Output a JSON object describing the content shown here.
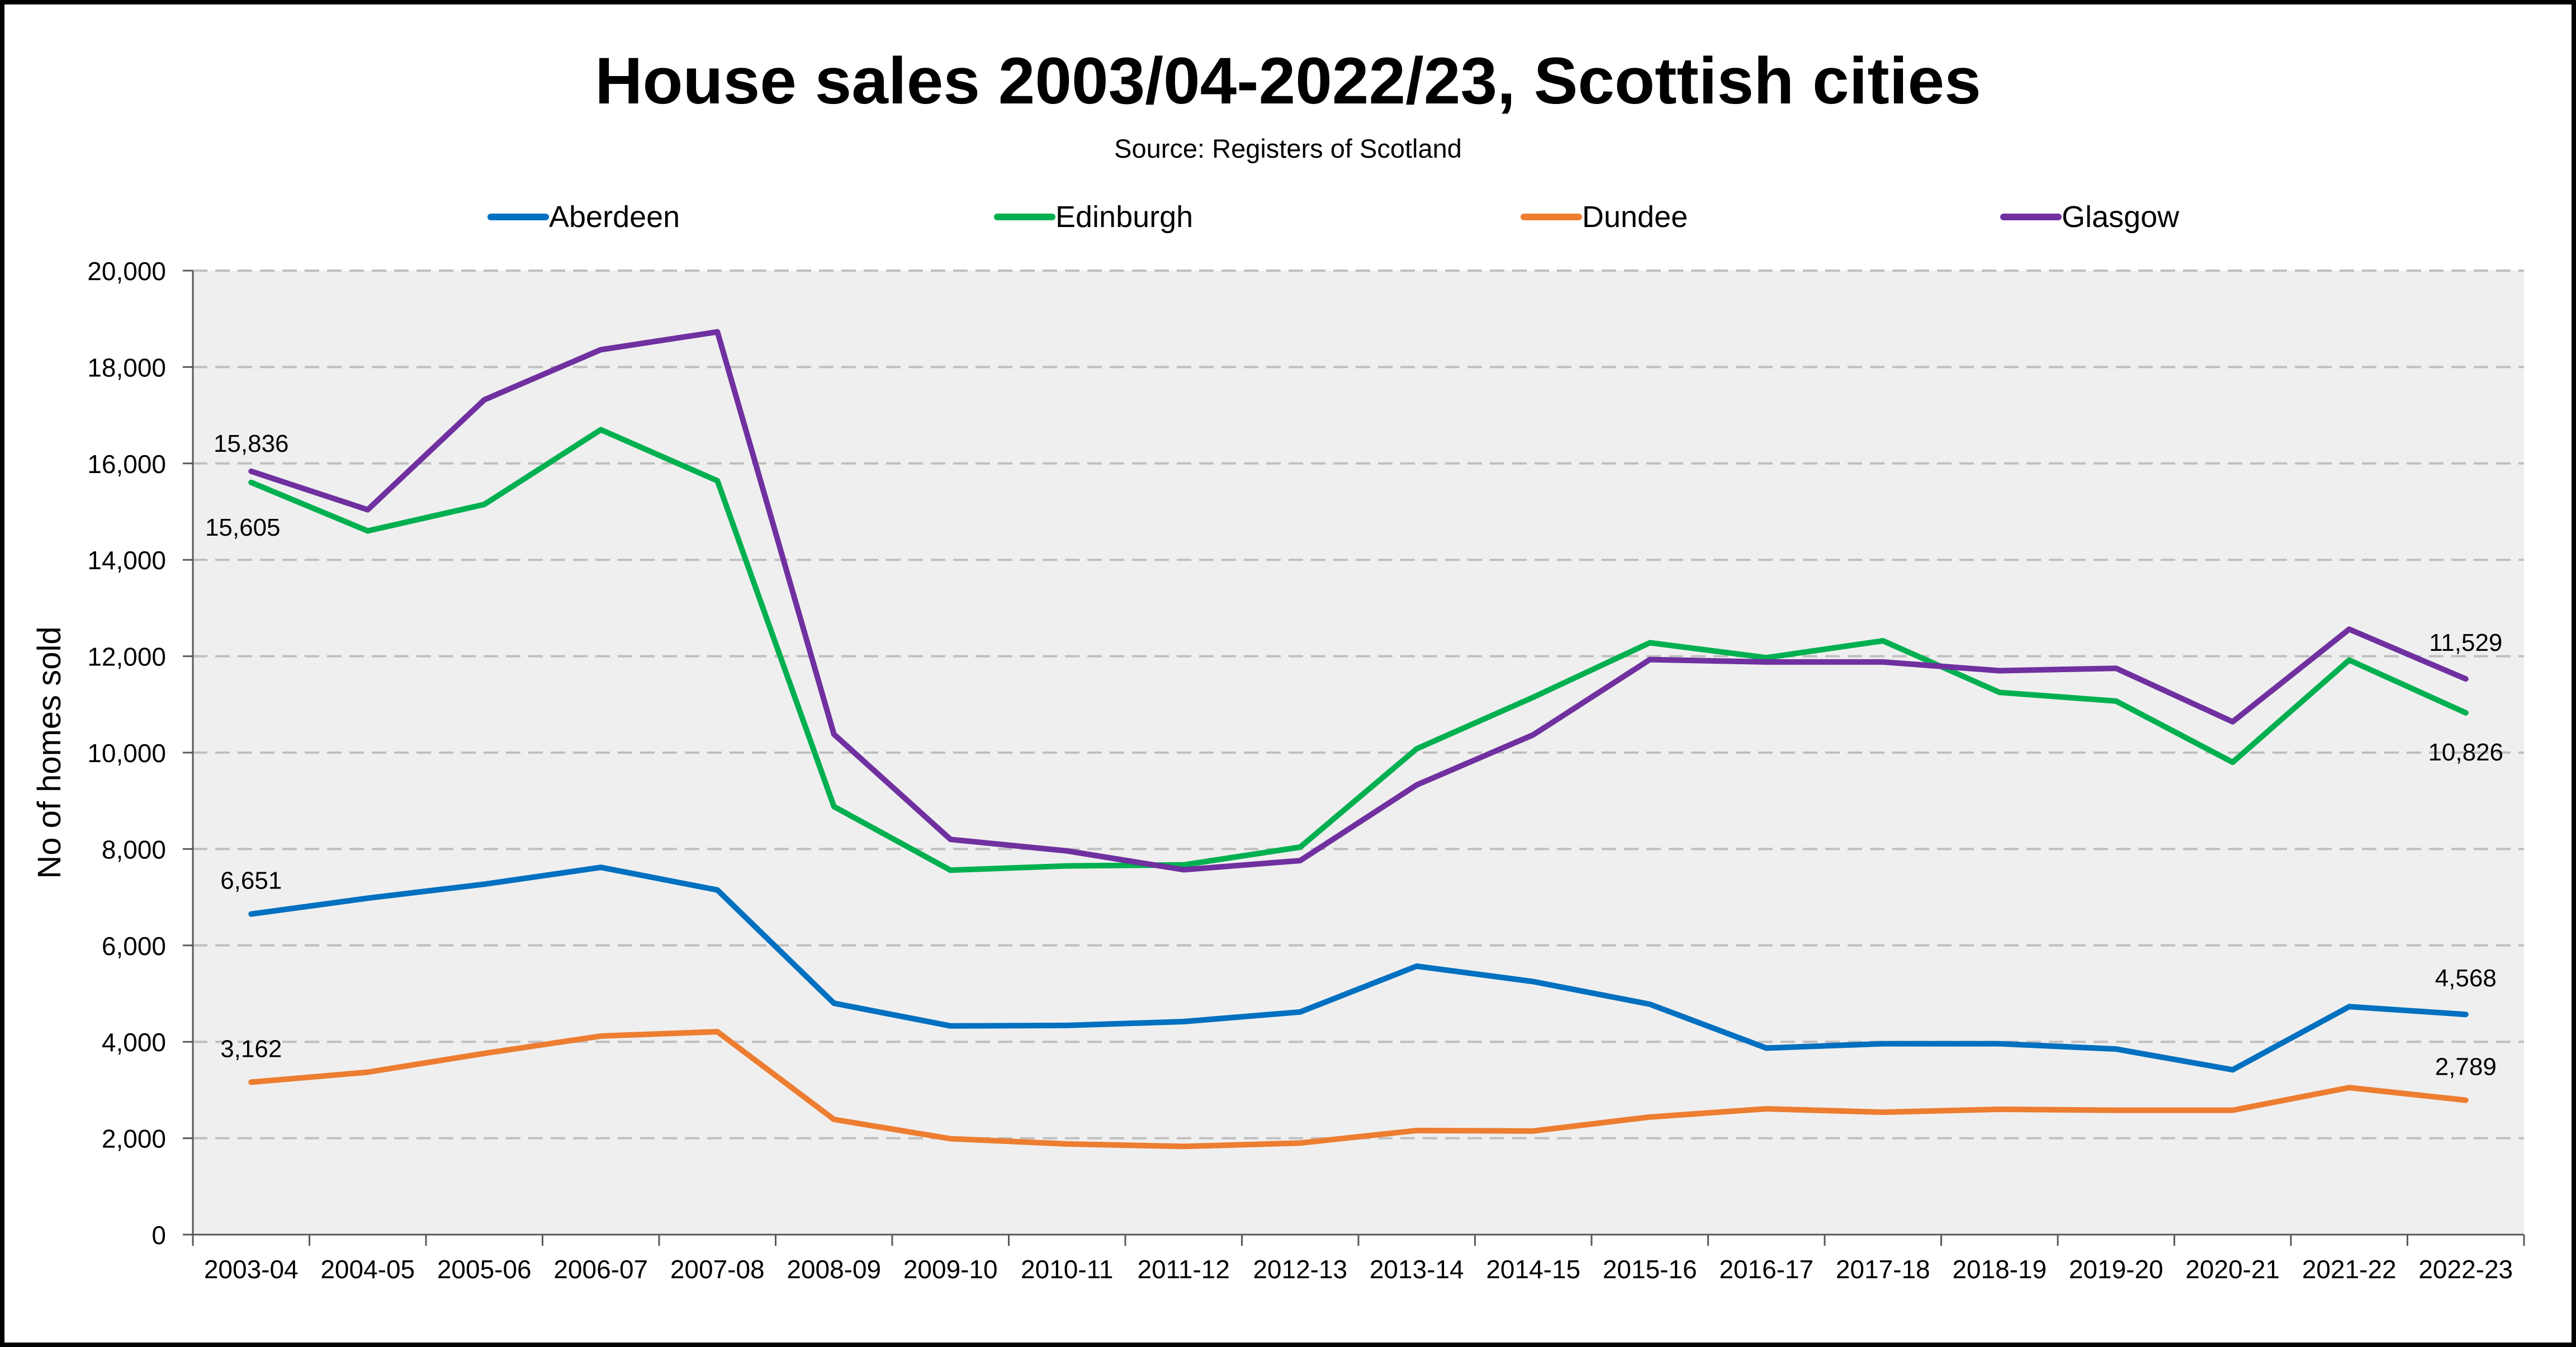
{
  "chart_data": {
    "type": "line",
    "title": "House sales 2003/04-2022/23, Scottish cities",
    "subtitle": "Source: Registers of Scotland",
    "xlabel": "",
    "ylabel": "No of homes sold",
    "ylim": [
      0,
      20000
    ],
    "ytick_step": 2000,
    "ytick_labels": [
      "0",
      "2,000",
      "4,000",
      "6,000",
      "8,000",
      "10,000",
      "12,000",
      "14,000",
      "16,000",
      "18,000",
      "20,000"
    ],
    "grid": true,
    "legend_position": "top",
    "categories": [
      "2003-04",
      "2004-05",
      "2005-06",
      "2006-07",
      "2007-08",
      "2008-09",
      "2009-10",
      "2010-11",
      "2011-12",
      "2012-13",
      "2013-14",
      "2014-15",
      "2015-16",
      "2016-17",
      "2017-18",
      "2018-19",
      "2019-20",
      "2020-21",
      "2021-22",
      "2022-23"
    ],
    "series": [
      {
        "name": "Aberdeen",
        "color": "#0070C0",
        "values": [
          6651,
          6980,
          7270,
          7620,
          7150,
          4800,
          4330,
          4340,
          4420,
          4620,
          5570,
          5250,
          4780,
          3870,
          3960,
          3960,
          3850,
          3420,
          4730,
          4568
        ]
      },
      {
        "name": "Edinburgh",
        "color": "#00B050",
        "values": [
          15605,
          14600,
          15150,
          16700,
          15640,
          8880,
          7560,
          7650,
          7670,
          8040,
          10080,
          11150,
          12280,
          11970,
          12320,
          11250,
          11070,
          9800,
          11920,
          10826
        ]
      },
      {
        "name": "Dundee",
        "color": "#ED7D31",
        "values": [
          3162,
          3370,
          3760,
          4120,
          4210,
          2390,
          1990,
          1880,
          1830,
          1900,
          2160,
          2150,
          2440,
          2610,
          2540,
          2600,
          2580,
          2580,
          3050,
          2789
        ]
      },
      {
        "name": "Glasgow",
        "color": "#7030A0",
        "values": [
          15836,
          15040,
          17320,
          18360,
          18730,
          10380,
          8200,
          7960,
          7570,
          7760,
          9330,
          10370,
          11930,
          11880,
          11880,
          11700,
          11750,
          10640,
          12560,
          11529
        ]
      }
    ],
    "annotations": [
      {
        "series": "Glasgow",
        "index": 0,
        "text": "15,836"
      },
      {
        "series": "Edinburgh",
        "index": 0,
        "text": "15,605"
      },
      {
        "series": "Aberdeen",
        "index": 0,
        "text": "6,651"
      },
      {
        "series": "Dundee",
        "index": 0,
        "text": "3,162"
      },
      {
        "series": "Glasgow",
        "index": 19,
        "text": "11,529"
      },
      {
        "series": "Edinburgh",
        "index": 19,
        "text": "10,826"
      },
      {
        "series": "Aberdeen",
        "index": 19,
        "text": "4,568"
      },
      {
        "series": "Dundee",
        "index": 19,
        "text": "2,789"
      }
    ]
  },
  "colors": {
    "plot_background": "#EFEFEF",
    "gridline": "#BFBFBF",
    "axis": "#595959",
    "border": "#000000"
  }
}
